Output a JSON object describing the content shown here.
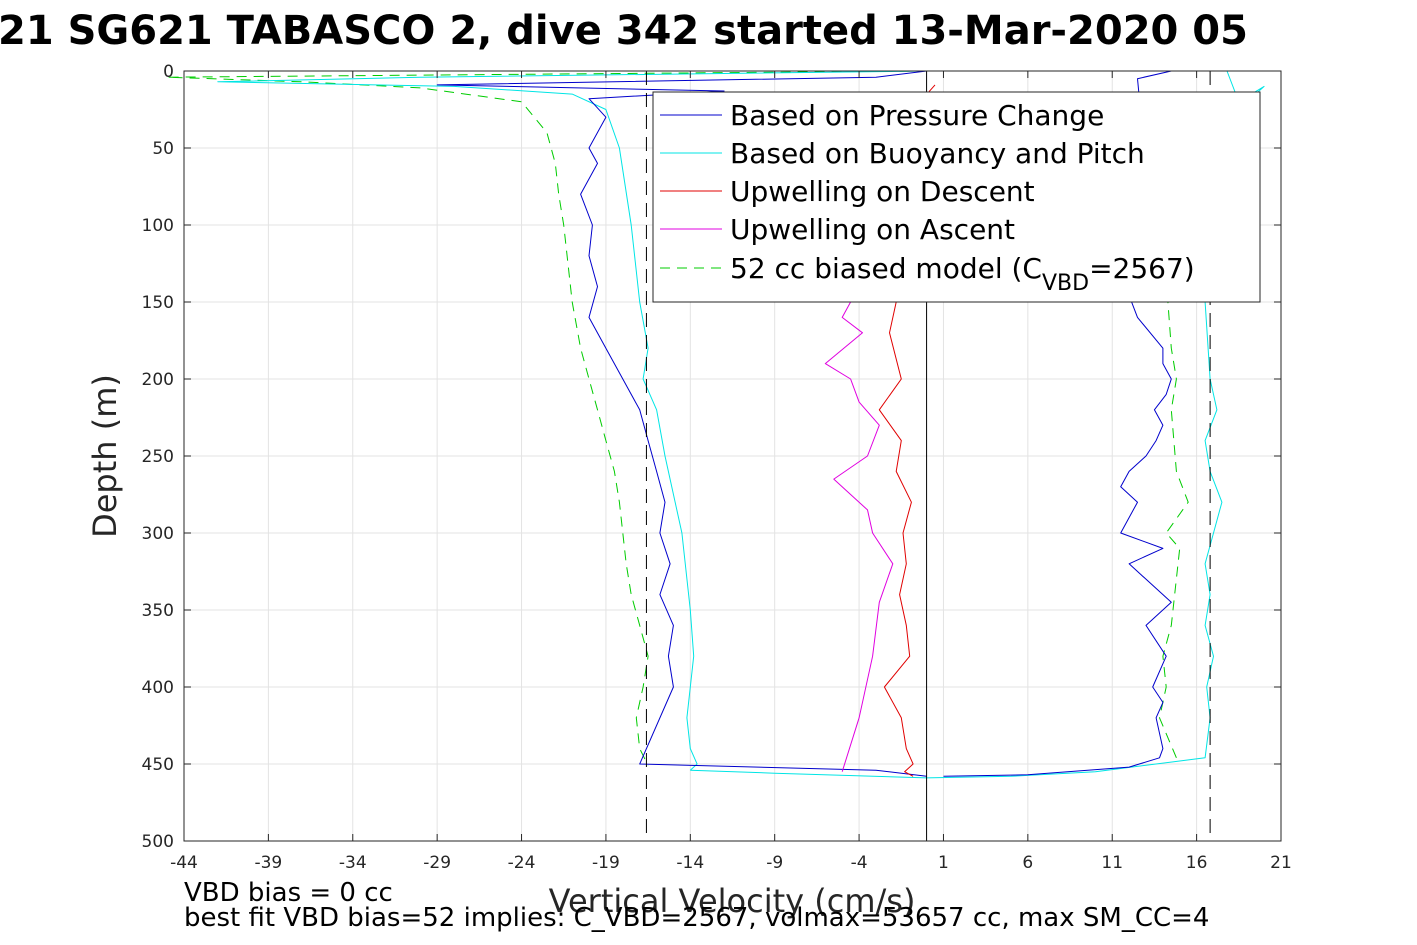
{
  "chart_data": {
    "type": "line",
    "title": "21 SG621 TABASCO 2, dive 342 started 13-Mar-2020 05",
    "xlabel": "Vertical Velocity (cm/s)",
    "ylabel": "Depth (m)",
    "xlim": [
      -44,
      21
    ],
    "ylim": [
      500,
      0
    ],
    "y_reversed": true,
    "grid": true,
    "xticks": [
      -44,
      -39,
      -34,
      -29,
      -24,
      -19,
      -14,
      -9,
      -4,
      1,
      6,
      11,
      16,
      21
    ],
    "yticks": [
      0,
      50,
      100,
      150,
      200,
      250,
      300,
      350,
      400,
      450,
      500
    ],
    "legend_position": "top-right",
    "reference_lines": [
      {
        "x": -16.6,
        "style": "dashed",
        "color": "#000000"
      },
      {
        "x": 16.8,
        "style": "dashed",
        "color": "#000000"
      },
      {
        "x": 0,
        "style": "solid",
        "color": "#000000"
      }
    ],
    "series": [
      {
        "name": "Based on Pressure Change",
        "color": "#0000cc",
        "style": "solid",
        "profiles": [
          {
            "x": [
              0,
              -3,
              -29,
              -12,
              -20,
              -19,
              -20,
              -19.5,
              -20.5,
              -19.8,
              -20,
              -19.5,
              -20,
              -19,
              -18,
              -17,
              -16.5,
              -16,
              -15.5,
              -15.8,
              -15.2,
              -15.8,
              -15,
              -15.3,
              -15,
              -17,
              -3,
              0
            ],
            "y": [
              0,
              4,
              9,
              13,
              18,
              30,
              50,
              60,
              80,
              100,
              120,
              140,
              160,
              180,
              200,
              220,
              240,
              260,
              280,
              300,
              320,
              340,
              360,
              380,
              400,
              450,
              454,
              458
            ]
          },
          {
            "x": [
              1,
              6,
              12,
              13.8,
              14,
              13.6,
              14,
              13.4,
              14.2,
              13,
              14.5,
              12,
              14,
              11.5,
              12.5,
              11.5,
              12,
              13,
              13.6,
              14,
              13.5,
              14.2,
              14.5,
              14,
              14,
              12.5,
              11.8,
              13.5,
              12.5,
              14.5
            ],
            "y": [
              458,
              457,
              452,
              446,
              440,
              420,
              410,
              400,
              380,
              360,
              345,
              320,
              310,
              300,
              280,
              270,
              260,
              250,
              240,
              230,
              220,
              210,
              200,
              190,
              180,
              160,
              140,
              120,
              5,
              0
            ]
          }
        ]
      },
      {
        "name": "Based on Buoyancy and Pitch",
        "color": "#00e5e5",
        "style": "solid",
        "profiles": [
          {
            "x": [
              0,
              -30,
              -42,
              -28,
              -21,
              -19,
              -18.2,
              -17.5,
              -17,
              -16.5,
              -16.8,
              -16,
              -15.5,
              -14.5,
              -14,
              -13.8,
              -14,
              -14.2,
              -14,
              -13.6,
              -14
            ],
            "y": [
              0,
              4,
              7,
              10,
              15,
              25,
              50,
              100,
              150,
              180,
              200,
              220,
              250,
              300,
              350,
              380,
              400,
              420,
              440,
              450,
              454
            ]
          },
          {
            "x": [
              -14,
              -9,
              0,
              5,
              10,
              16.5,
              16.8,
              16.6,
              17,
              16.5,
              16.8,
              16.5,
              17,
              17.5,
              16.8,
              16.5,
              17.2,
              16.8,
              16.5,
              18,
              20,
              18.5,
              17.8
            ],
            "y": [
              454,
              456,
              459,
              458,
              455,
              446,
              420,
              400,
              380,
              360,
              340,
              320,
              300,
              280,
              260,
              240,
              220,
              200,
              150,
              30,
              10,
              20,
              0
            ]
          }
        ]
      },
      {
        "name": "Upwelling on Descent",
        "color": "#e00000",
        "style": "solid",
        "profiles": [
          {
            "x": [
              0.5,
              -2,
              -3,
              -1.8,
              -2.2,
              -1.5,
              -2.8,
              -1.5,
              -1.8,
              -0.9,
              -1.4,
              -1.2,
              -1.6,
              -1.2,
              -1,
              -2.5,
              -1.5,
              -1.2,
              -0.8,
              -1.3,
              -0.8
            ],
            "y": [
              9,
              40,
              100,
              150,
              170,
              200,
              220,
              240,
              260,
              280,
              300,
              320,
              340,
              360,
              380,
              400,
              420,
              440,
              450,
              455,
              458
            ]
          }
        ]
      },
      {
        "name": "Upwelling on Ascent",
        "color": "#e000e0",
        "style": "solid",
        "profiles": [
          {
            "x": [
              -4.5,
              -5,
              -3.8,
              -6,
              -4.5,
              -4,
              -2.8,
              -3.5,
              -5.5,
              -4.5,
              -3.5,
              -3.2,
              -2,
              -2.8,
              -3.2,
              -4,
              -5
            ],
            "y": [
              150,
              160,
              170,
              190,
              200,
              215,
              230,
              250,
              265,
              275,
              285,
              300,
              320,
              345,
              380,
              420,
              455
            ]
          }
        ]
      },
      {
        "name": "52 cc biased model (C_VBD=2567)",
        "color": "#00cc00",
        "style": "dashed",
        "profiles": [
          {
            "x": [
              0,
              -45,
              -37,
              -30,
              -24,
              -22.5,
              -22,
              -21.8,
              -21.5,
              -21,
              -20.5,
              -20,
              -19.5,
              -19,
              -18.5,
              -18.2,
              -18,
              -17.8,
              -17.5,
              -17,
              -16.5,
              -16.8,
              -17.2,
              -17,
              -16.5
            ],
            "y": [
              0,
              4,
              7,
              11,
              20,
              40,
              60,
              80,
              100,
              150,
              180,
              200,
              220,
              240,
              260,
              280,
              300,
              320,
              340,
              360,
              380,
              400,
              420,
              440,
              451
            ]
          },
          {
            "x": [
              14.8,
              13.8,
              14.2,
              14,
              14.5,
              15,
              14.2,
              15.5,
              14.8,
              14.5,
              14.8,
              14.5,
              14.3,
              15.5
            ],
            "y": [
              446,
              420,
              400,
              380,
              360,
              310,
              300,
              280,
              260,
              220,
              200,
              180,
              150,
              15
            ]
          }
        ]
      }
    ]
  },
  "legend_labels": {
    "l0": "Based on Pressure Change",
    "l1": "Based on Buoyancy and Pitch",
    "l2": "Upwelling on Descent",
    "l3": "Upwelling on Ascent",
    "l4_main": "52 cc biased model (C",
    "l4_sub": "VBD",
    "l4_tail": "=2567)"
  },
  "notes": {
    "vbd_bias": "VBD bias = 0 cc",
    "best_fit": "best fit VBD bias=52 implies: C_VBD=2567, volmax=53657 cc, max SM_CC=4"
  }
}
